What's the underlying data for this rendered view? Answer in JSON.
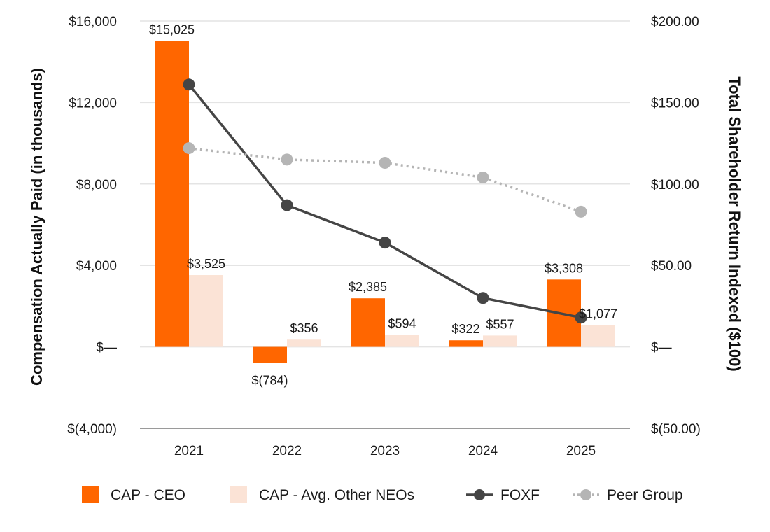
{
  "chart_data": {
    "type": "bar",
    "title": "",
    "categories": [
      "2021",
      "2022",
      "2023",
      "2024",
      "2025"
    ],
    "ylabel": "Compensation Actually Paid (in thousands)",
    "y2label": "Total Shareholder Return Indexed ($100)",
    "ylim": [
      -4000,
      16000
    ],
    "y2lim": [
      -50,
      200
    ],
    "yticks": [
      {
        "value": 16000,
        "label": "$16,000"
      },
      {
        "value": 12000,
        "label": "$12,000"
      },
      {
        "value": 8000,
        "label": "$8,000"
      },
      {
        "value": 4000,
        "label": "$4,000"
      },
      {
        "value": 0,
        "label": "$—"
      },
      {
        "value": -4000,
        "label": "$(4,000)"
      }
    ],
    "y2ticks": [
      {
        "value": 200,
        "label": "$200.00"
      },
      {
        "value": 150,
        "label": "$150.00"
      },
      {
        "value": 100,
        "label": "$100.00"
      },
      {
        "value": 50,
        "label": "$50.00"
      },
      {
        "value": 0,
        "label": "$—"
      },
      {
        "value": -50,
        "label": "$(50.00)"
      }
    ],
    "grid": true,
    "legend_position": "bottom",
    "series": [
      {
        "name": "CAP - CEO",
        "kind": "bar",
        "axis": "left",
        "color": "#ff6600",
        "values": [
          15025,
          -784,
          2385,
          322,
          3308
        ],
        "labels": [
          "$15,025",
          "$(784)",
          "$2,385",
          "$322",
          "$3,308"
        ]
      },
      {
        "name": "CAP - Avg. Other NEOs",
        "kind": "bar",
        "axis": "left",
        "color": "#fbe3d6",
        "values": [
          3525,
          356,
          594,
          557,
          1077
        ],
        "labels": [
          "$3,525",
          "$356",
          "$594",
          "$557",
          "$1,077"
        ]
      },
      {
        "name": "FOXF",
        "kind": "line",
        "axis": "right",
        "color": "#454545",
        "style": "solid",
        "values": [
          161,
          87,
          64,
          30,
          18
        ]
      },
      {
        "name": "Peer Group",
        "kind": "line",
        "axis": "right",
        "color": "#b5b5b5",
        "style": "dotted",
        "values": [
          122,
          115,
          113,
          104,
          83
        ]
      }
    ]
  }
}
